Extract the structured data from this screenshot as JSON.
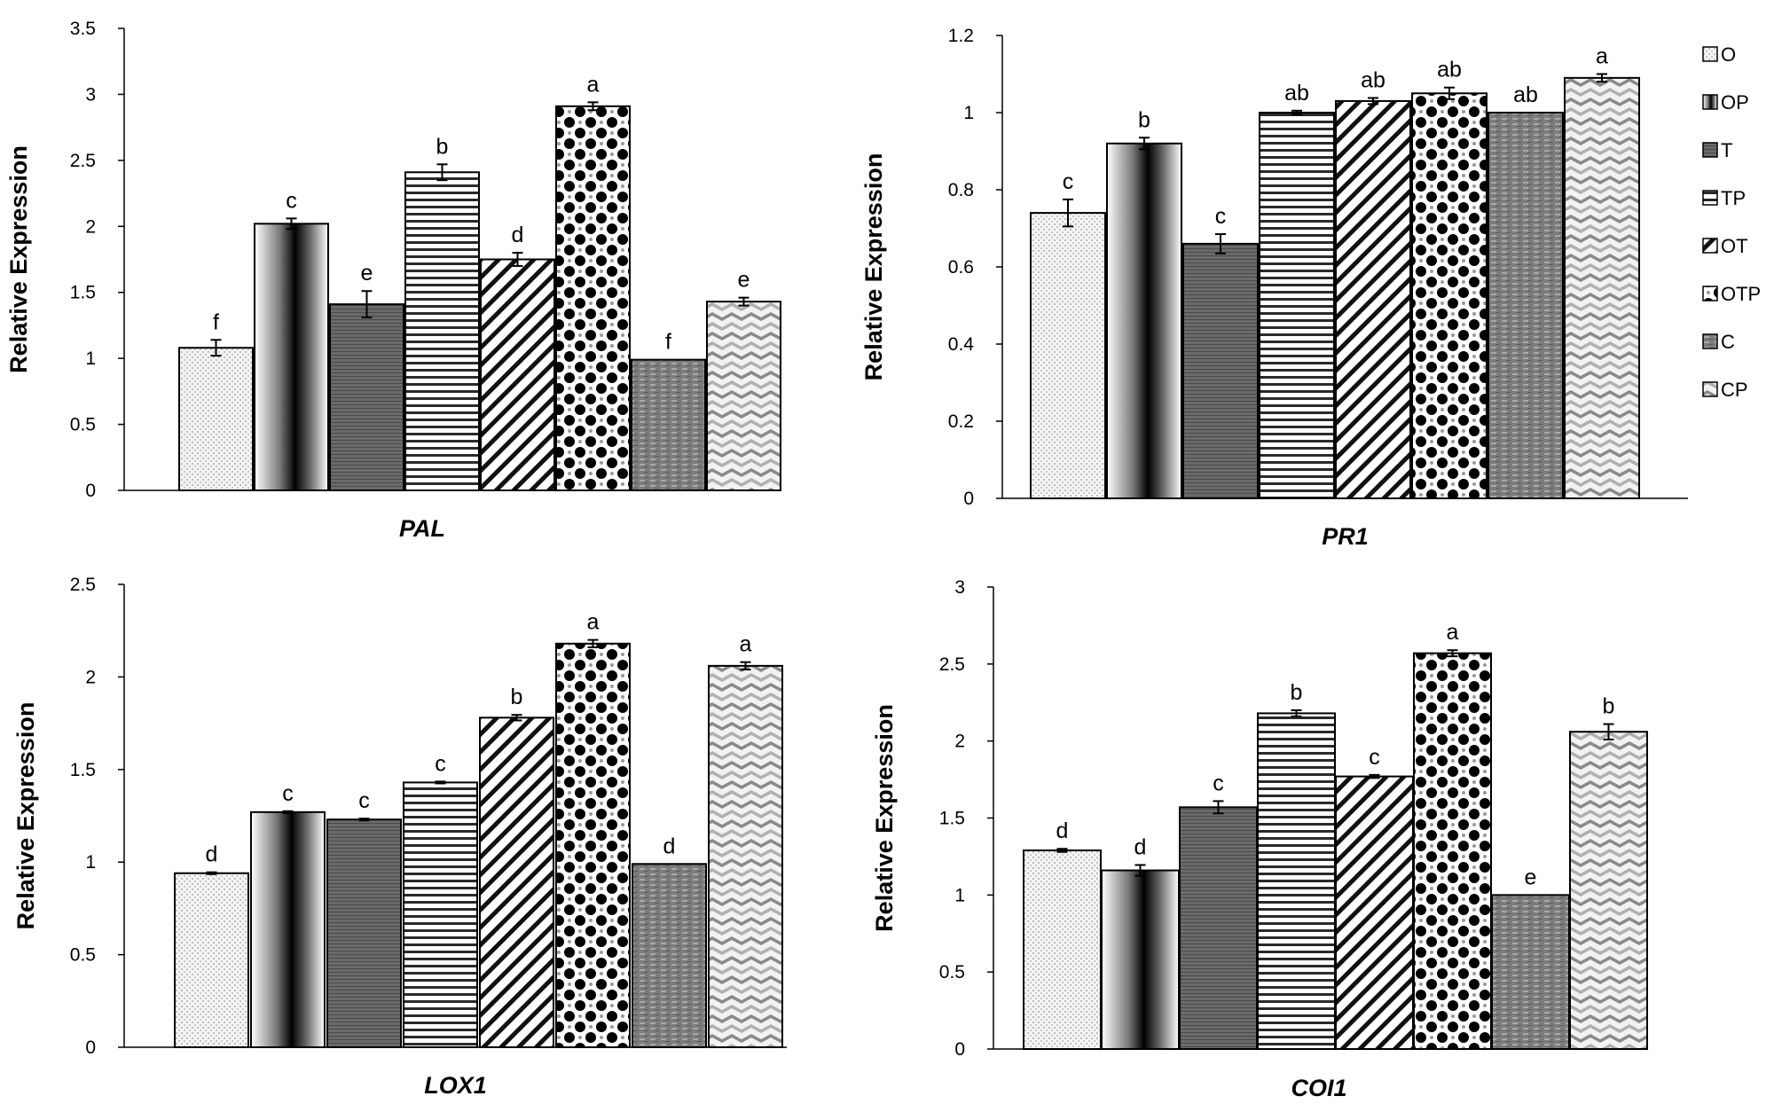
{
  "chart_data": [
    {
      "type": "bar",
      "title": "PAL",
      "ylabel": "Relative Expression",
      "xlabel": "",
      "ylim": [
        0,
        3.5
      ],
      "yticks": [
        "0",
        "0.5",
        "1",
        "1.5",
        "2",
        "2.5",
        "3",
        "3.5"
      ],
      "categories": [
        "O",
        "OP",
        "T",
        "TP",
        "OT",
        "OTP",
        "C",
        "CP"
      ],
      "values": [
        1.08,
        2.02,
        1.41,
        2.41,
        1.75,
        2.91,
        0.99,
        1.43
      ],
      "errors": [
        0.06,
        0.04,
        0.1,
        0.06,
        0.05,
        0.03,
        0.0,
        0.03
      ],
      "letters": [
        "f",
        "c",
        "e",
        "b",
        "d",
        "a",
        "f",
        "e"
      ]
    },
    {
      "type": "bar",
      "title": "PR1",
      "ylabel": "Relative Expression",
      "xlabel": "",
      "ylim": [
        0,
        1.2
      ],
      "yticks": [
        "0",
        "0.2",
        "0.4",
        "0.6",
        "0.8",
        "1",
        "1.2"
      ],
      "categories": [
        "O",
        "OP",
        "T",
        "TP",
        "OT",
        "OTP",
        "C",
        "CP"
      ],
      "values": [
        0.74,
        0.92,
        0.66,
        1.0,
        1.03,
        1.05,
        1.0,
        1.09
      ],
      "errors": [
        0.035,
        0.015,
        0.025,
        0.005,
        0.008,
        0.015,
        0.0,
        0.01
      ],
      "letters": [
        "c",
        "b",
        "c",
        "ab",
        "ab",
        "ab",
        "ab",
        "a"
      ]
    },
    {
      "type": "bar",
      "title": "LOX1",
      "ylabel": "Relative Expression",
      "xlabel": "",
      "ylim": [
        0,
        2.5
      ],
      "yticks": [
        "0",
        "0.5",
        "1",
        "1.5",
        "2",
        "2.5"
      ],
      "categories": [
        "O",
        "OP",
        "T",
        "TP",
        "OT",
        "OTP",
        "C",
        "CP"
      ],
      "values": [
        0.94,
        1.27,
        1.23,
        1.43,
        1.78,
        2.18,
        0.99,
        2.06
      ],
      "errors": [
        0.005,
        0.005,
        0.005,
        0.005,
        0.015,
        0.02,
        0.0,
        0.02
      ],
      "letters": [
        "d",
        "c",
        "c",
        "c",
        "b",
        "a",
        "d",
        "a"
      ]
    },
    {
      "type": "bar",
      "title": "COI1",
      "ylabel": "Relative Expression",
      "xlabel": "",
      "ylim": [
        0,
        3
      ],
      "yticks": [
        "0",
        "0.5",
        "1",
        "1.5",
        "2",
        "2.5",
        "3"
      ],
      "categories": [
        "O",
        "OP",
        "T",
        "TP",
        "OT",
        "OTP",
        "C",
        "CP"
      ],
      "values": [
        1.29,
        1.16,
        1.57,
        2.18,
        1.77,
        2.57,
        1.0,
        2.06
      ],
      "errors": [
        0.01,
        0.035,
        0.04,
        0.02,
        0.01,
        0.02,
        0.0,
        0.05
      ],
      "letters": [
        "d",
        "d",
        "c",
        "b",
        "c",
        "a",
        "e",
        "b"
      ]
    }
  ],
  "legend": {
    "position": "right",
    "entries": [
      "O",
      "OP",
      "T",
      "TP",
      "OT",
      "OTP",
      "C",
      "CP"
    ]
  },
  "colors": {
    "axis": "#000000",
    "bar_outline": "#000000",
    "background": "#ffffff"
  }
}
